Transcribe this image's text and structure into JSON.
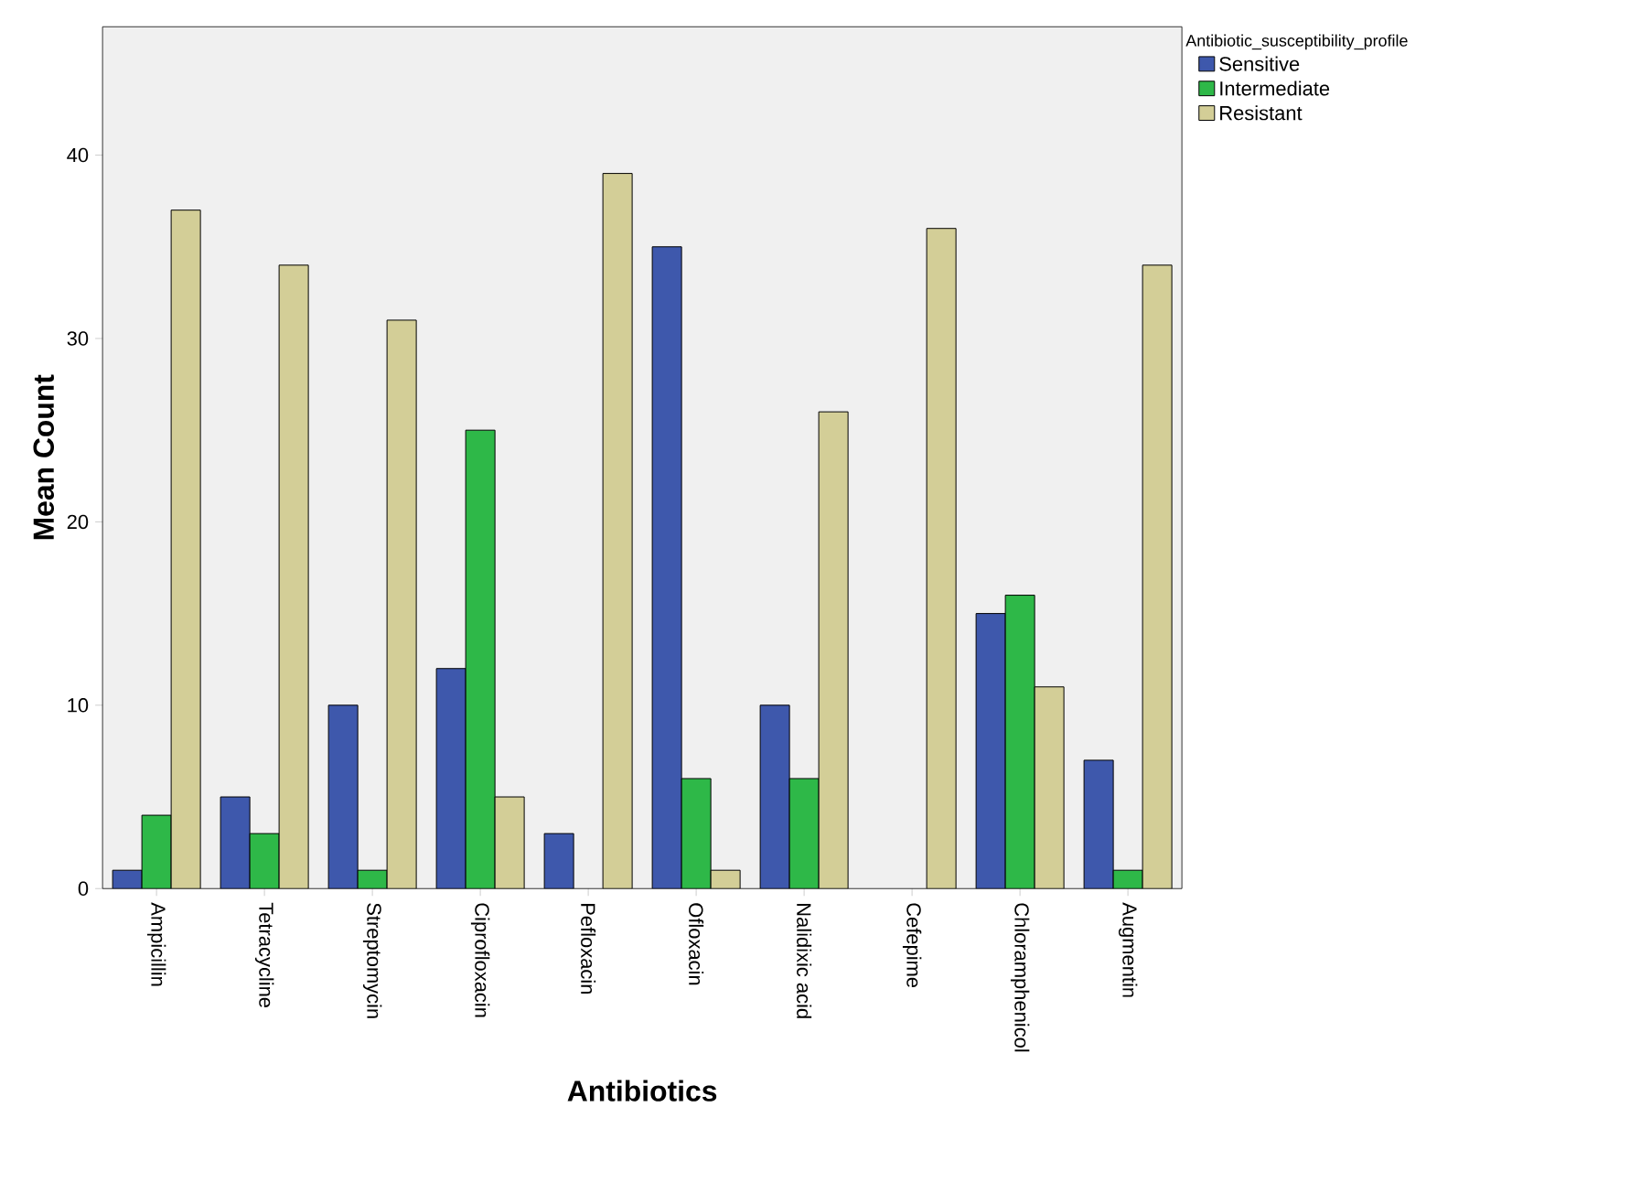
{
  "chart_data": {
    "type": "bar",
    "xlabel": "Antibiotics",
    "ylabel": "Mean Count",
    "legend_title": "Antibiotic_susceptibility_profile",
    "categories": [
      "Ampicillin",
      "Tetracycline",
      "Streptomycin",
      "Ciprofloxacin",
      "Pefloxacin",
      "Ofloxacin",
      "Nalidixic acid",
      "Cefepime",
      "Chloramphenicol",
      "Augmentin"
    ],
    "series": [
      {
        "name": "Sensitive",
        "color": "#3e58ac",
        "values": [
          1,
          5,
          10,
          12,
          3,
          35,
          10,
          null,
          15,
          7
        ]
      },
      {
        "name": "Intermediate",
        "color": "#2eb848",
        "values": [
          4,
          3,
          1,
          25,
          null,
          6,
          6,
          null,
          16,
          1
        ]
      },
      {
        "name": "Resistant",
        "color": "#d3ce97",
        "values": [
          37,
          34,
          31,
          5,
          39,
          1,
          26,
          36,
          11,
          34
        ]
      }
    ],
    "ylim": [
      0,
      47
    ],
    "yticks": [
      0,
      10,
      20,
      30,
      40
    ],
    "grid": false,
    "legend": "top right"
  }
}
